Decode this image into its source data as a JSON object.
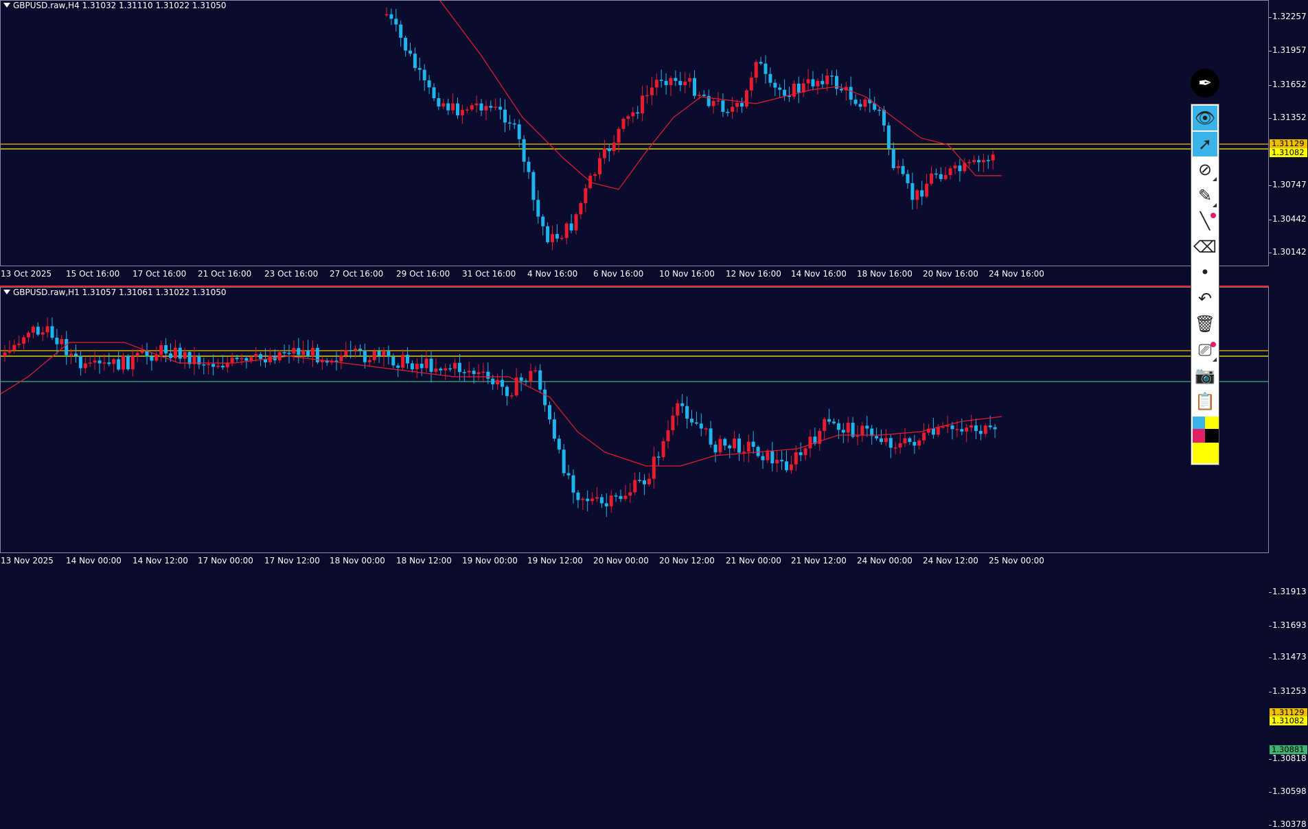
{
  "pane1": {
    "title": "GBPUSD.raw,H4  1.31032 1.31110 1.31022 1.31050",
    "y_labels": [
      "1.32257",
      "1.31957",
      "1.31652",
      "1.31352",
      "1.30747",
      "1.30442",
      "1.30142"
    ],
    "price_tags": [
      {
        "text": "1.31129",
        "color": "#f0c000"
      },
      {
        "text": "1.31082",
        "color": "#ffff00"
      }
    ],
    "x_labels": [
      "13 Oct 2025",
      "15 Oct 16:00",
      "17 Oct 16:00",
      "21 Oct 16:00",
      "23 Oct 16:00",
      "27 Oct 16:00",
      "29 Oct 16:00",
      "31 Oct 16:00",
      "4 Nov 16:00",
      "6 Nov 16:00",
      "10 Nov 16:00",
      "12 Nov 16:00",
      "14 Nov 16:00",
      "18 Nov 16:00",
      "20 Nov 16:00",
      "24 Nov 16:00"
    ]
  },
  "pane2": {
    "title": "GBPUSD.raw,H1  1.31057 1.31061 1.31022 1.31050",
    "y_labels": [
      "1.31913",
      "1.31693",
      "1.31473",
      "1.31253",
      "1.30818",
      "1.30598",
      "1.30378"
    ],
    "price_tags": [
      {
        "text": "1.31129",
        "color": "#f0c000"
      },
      {
        "text": "1.31082",
        "color": "#ffff00"
      },
      {
        "text": "1.30881",
        "color": "#3cb371"
      }
    ],
    "x_labels": [
      "13 Nov 2025",
      "14 Nov 00:00",
      "14 Nov 12:00",
      "17 Nov 00:00",
      "17 Nov 12:00",
      "18 Nov 00:00",
      "18 Nov 12:00",
      "19 Nov 00:00",
      "19 Nov 12:00",
      "20 Nov 00:00",
      "20 Nov 12:00",
      "21 Nov 00:00",
      "21 Nov 12:00",
      "24 Nov 00:00",
      "24 Nov 12:00",
      "25 Nov 00:00"
    ]
  },
  "colors": {
    "bull": "#e81c2e",
    "bear": "#1fb5ec",
    "ma": "#e81c2e",
    "level_orange": "#f0c000",
    "level_yellow": "#ffff00",
    "level_green": "#3cb371",
    "background": "#0b0b2e"
  },
  "toolbar": {
    "items": [
      {
        "name": "eye-icon",
        "glyph": "👁",
        "active": true
      },
      {
        "name": "cursor-arrow-icon",
        "glyph": "➚",
        "active": true
      },
      {
        "name": "crossed-circle-tool-icon",
        "glyph": "⊘",
        "active": false
      },
      {
        "name": "pen-tool-icon",
        "glyph": "✎",
        "active": false
      },
      {
        "name": "line-tool-icon",
        "glyph": "╲",
        "active": false
      },
      {
        "name": "eraser-icon",
        "glyph": "⌫",
        "active": false
      },
      {
        "name": "brush-size-dot-icon",
        "glyph": "•",
        "active": false
      },
      {
        "name": "undo-icon",
        "glyph": "↶",
        "active": false
      },
      {
        "name": "trash-icon",
        "glyph": "🗑",
        "active": false
      },
      {
        "name": "projector-icon",
        "glyph": "⎚",
        "active": false
      },
      {
        "name": "camera-icon",
        "glyph": "📷",
        "active": false
      },
      {
        "name": "clipboard-icon",
        "glyph": "📋",
        "active": false
      }
    ],
    "swatches": [
      "#39b3e8",
      "#ffff00",
      "#e0206a",
      "#000000",
      "#ffff00"
    ]
  }
}
